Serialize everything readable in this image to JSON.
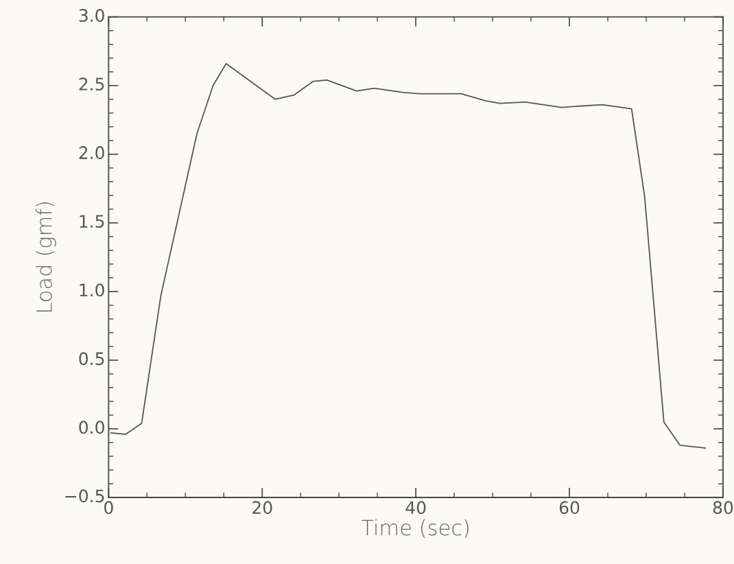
{
  "chart_data": {
    "type": "line",
    "xlabel": "Time (sec)",
    "ylabel": "Load (gmf)",
    "x": [
      0.3,
      2.2,
      4.3,
      6.8,
      11.5,
      13.6,
      15.3,
      21.7,
      24.1,
      26.6,
      28.4,
      32.3,
      34.6,
      38.3,
      40.4,
      42.4,
      45.9,
      49.0,
      50.9,
      54.2,
      59.0,
      61.2,
      64.3,
      68.1,
      69.8,
      72.3,
      74.4,
      77.7
    ],
    "series": [
      {
        "color": "#555555",
        "values": [
          -0.03,
          -0.04,
          0.04,
          0.97,
          2.15,
          2.5,
          2.66,
          2.4,
          2.43,
          2.53,
          2.54,
          2.46,
          2.48,
          2.45,
          2.44,
          2.44,
          2.44,
          2.39,
          2.37,
          2.38,
          2.34,
          2.35,
          2.36,
          2.33,
          1.69,
          0.05,
          -0.12,
          -0.14
        ]
      }
    ],
    "xlim": [
      0,
      80
    ],
    "ylim": [
      -0.5,
      3.0
    ],
    "xticks": [
      0,
      20,
      40,
      60,
      80
    ],
    "yticks": [
      {
        "value": -0.5,
        "label": "−0.5"
      },
      {
        "value": 0.0,
        "label": "0.0"
      },
      {
        "value": 0.5,
        "label": "0.5"
      },
      {
        "value": 1.0,
        "label": "1.0"
      },
      {
        "value": 1.5,
        "label": "1.5"
      },
      {
        "value": 2.0,
        "label": "2.0"
      },
      {
        "value": 2.5,
        "label": "2.5"
      },
      {
        "value": 3.0,
        "label": "3.0"
      }
    ],
    "grid": false,
    "legend": false,
    "marker": "none",
    "line_style": "solid"
  }
}
